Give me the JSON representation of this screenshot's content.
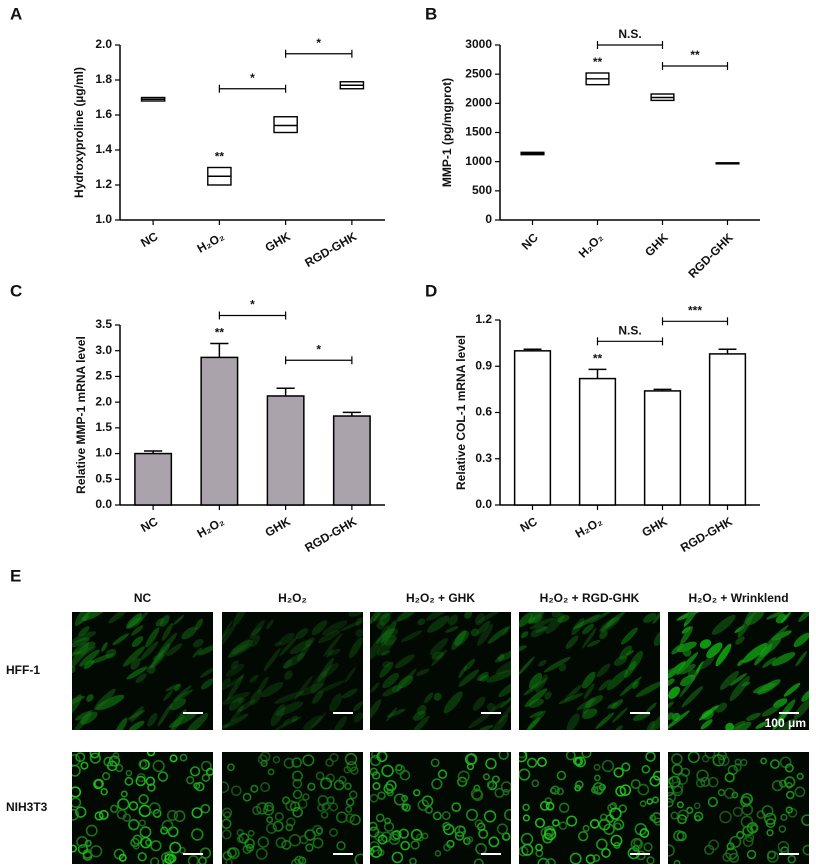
{
  "chart_data": [
    {
      "type": "box",
      "panel": "A",
      "y_label": "Hydroxyproline (µg/ml)",
      "categories": [
        "NC",
        "H₂O₂",
        "GHK",
        "RGD-GHK"
      ],
      "low": [
        1.68,
        1.2,
        1.5,
        1.75
      ],
      "median": [
        1.69,
        1.25,
        1.54,
        1.77
      ],
      "high": [
        1.7,
        1.3,
        1.59,
        1.79
      ],
      "ylim": [
        1.0,
        2.0
      ],
      "yticks": [
        {
          "value": 1.0,
          "label": "1.0"
        },
        1.2,
        1.4,
        1.6,
        1.8,
        {
          "value": 2.0,
          "label": "2.0"
        }
      ],
      "annotations": [
        {
          "text": "**",
          "category": "H₂O₂"
        }
      ],
      "brackets": [
        {
          "from": "H₂O₂",
          "to": "GHK",
          "text": "*"
        },
        {
          "from": "GHK",
          "to": "RGD-GHK",
          "text": "*"
        }
      ]
    },
    {
      "type": "box",
      "panel": "B",
      "y_label": "MMP-1 (pg/mgprot)",
      "categories": [
        "NC",
        "H₂O₂",
        "GHK",
        "RGD-GHK"
      ],
      "low": [
        1120,
        2320,
        2050,
        970
      ],
      "median": [
        1140,
        2420,
        2100,
        975
      ],
      "high": [
        1160,
        2520,
        2160,
        980
      ],
      "ylim": [
        0,
        3000
      ],
      "yticks": [
        0,
        500,
        1000,
        1500,
        2000,
        2500,
        3000
      ],
      "annotations": [
        {
          "text": "**",
          "category": "H₂O₂"
        }
      ],
      "brackets": [
        {
          "from": "H₂O₂",
          "to": "GHK",
          "text": "N.S."
        },
        {
          "from": "GHK",
          "to": "RGD-GHK",
          "text": "**"
        }
      ]
    },
    {
      "type": "bar",
      "panel": "C",
      "y_label": "Relative MMP-1 mRNA level",
      "color": "#aaa3ac",
      "categories": [
        "NC",
        "H₂O₂",
        "GHK",
        "RGD-GHK"
      ],
      "values": [
        1.0,
        2.87,
        2.12,
        1.73
      ],
      "errors": [
        0.05,
        0.27,
        0.15,
        0.07
      ],
      "ylim": [
        0,
        3.5
      ],
      "yticks": [
        {
          "value": 0,
          "label": "0.0"
        },
        0.5,
        {
          "value": 1,
          "label": "1.0"
        },
        1.5,
        {
          "value": 2,
          "label": "2.0"
        },
        2.5,
        {
          "value": 3,
          "label": "3.0"
        },
        3.5
      ],
      "annotations": [
        {
          "text": "**",
          "category": "H₂O₂"
        }
      ],
      "brackets": [
        {
          "from": "H₂O₂",
          "to": "GHK",
          "text": "*"
        },
        {
          "from": "GHK",
          "to": "RGD-GHK",
          "text": "*"
        }
      ]
    },
    {
      "type": "bar",
      "panel": "D",
      "y_label": "Relative COL-1 mRNA level",
      "color": "#ffffff",
      "categories": [
        "NC",
        "H₂O₂",
        "GHK",
        "RGD-GHK"
      ],
      "values": [
        1.0,
        0.82,
        0.74,
        0.98
      ],
      "errors": [
        0.01,
        0.06,
        0.01,
        0.03
      ],
      "ylim": [
        0,
        1.2
      ],
      "yticks": [
        {
          "value": 0,
          "label": "0.0"
        },
        0.3,
        0.6,
        0.9,
        1.2
      ],
      "annotations": [
        {
          "text": "**",
          "category": "H₂O₂"
        }
      ],
      "brackets": [
        {
          "from": "H₂O₂",
          "to": "GHK",
          "text": "N.S."
        },
        {
          "from": "GHK",
          "to": "RGD-GHK",
          "text": "***"
        }
      ]
    }
  ],
  "panel_e": {
    "panel": "E",
    "columns": [
      "NC",
      "H₂O₂",
      "H₂O₂ + GHK",
      "H₂O₂ + RGD-GHK",
      "H₂O₂ + Wrinklend"
    ],
    "rows": [
      "HFF-1",
      "NIH3T3"
    ],
    "scale_bar": "100 μm"
  }
}
